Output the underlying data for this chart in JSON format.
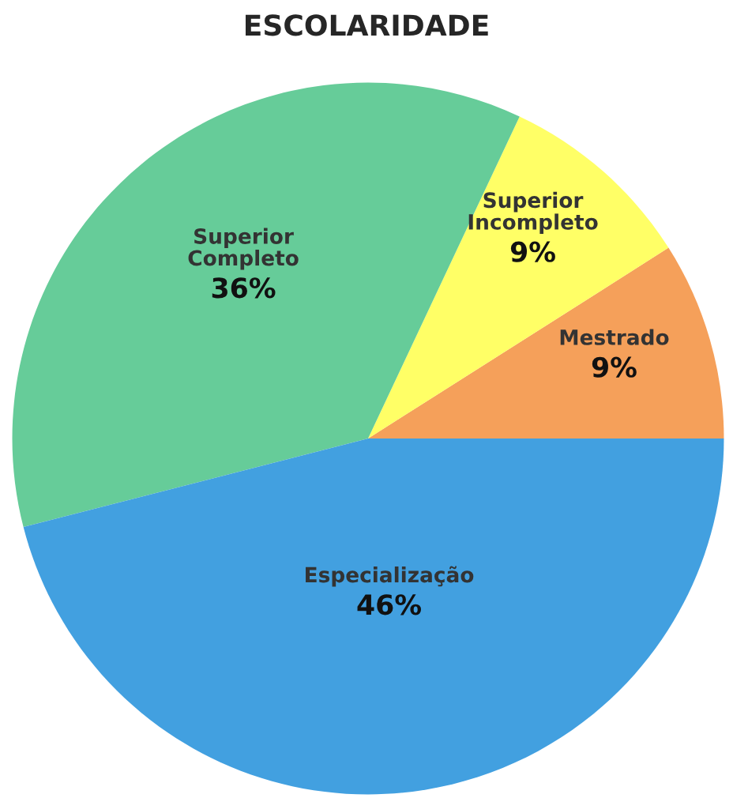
{
  "chart_data": {
    "type": "pie",
    "title": "ESCOLARIDADE",
    "categories": [
      "Mestrado",
      "Superior Incompleto",
      "Superior Completo",
      "Especialização"
    ],
    "values": [
      9,
      9,
      36,
      46
    ],
    "value_labels": [
      "9%",
      "9%",
      "36%",
      "46%"
    ],
    "colors": [
      "#f5a05a",
      "#ffff66",
      "#66cc99",
      "#42a0e0"
    ]
  }
}
